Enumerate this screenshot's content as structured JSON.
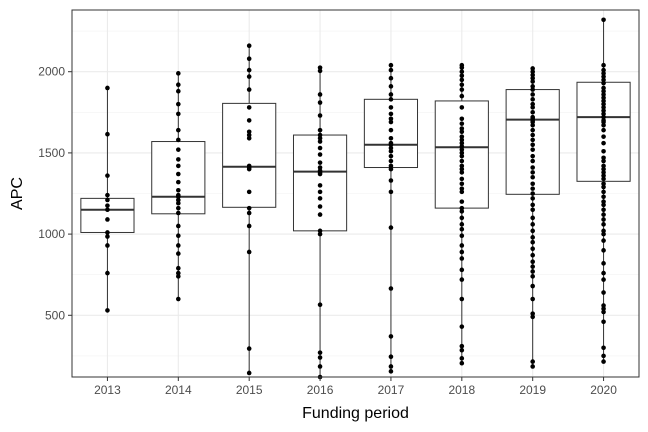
{
  "chart_data": {
    "type": "box",
    "xlabel": "Funding period",
    "ylabel": "APC",
    "ylim": [
      120,
      2380
    ],
    "yticks": [
      500,
      1000,
      1500,
      2000
    ],
    "grid": true,
    "theme": "bw",
    "categories": [
      "2013",
      "2014",
      "2015",
      "2016",
      "2017",
      "2018",
      "2019",
      "2020"
    ],
    "boxes": [
      {
        "q1": 1010,
        "median": 1150,
        "q3": 1220,
        "whisker_low": 530,
        "whisker_high": 1900
      },
      {
        "q1": 1125,
        "median": 1230,
        "q3": 1570,
        "whisker_low": 600,
        "whisker_high": 1990
      },
      {
        "q1": 1165,
        "median": 1415,
        "q3": 1805,
        "whisker_low": 145,
        "whisker_high": 2160
      },
      {
        "q1": 1020,
        "median": 1385,
        "q3": 1610,
        "whisker_low": 120,
        "whisker_high": 2025
      },
      {
        "q1": 1410,
        "median": 1550,
        "q3": 1830,
        "whisker_low": 155,
        "whisker_high": 2040
      },
      {
        "q1": 1160,
        "median": 1535,
        "q3": 1820,
        "whisker_low": 205,
        "whisker_high": 2040
      },
      {
        "q1": 1245,
        "median": 1705,
        "q3": 1890,
        "whisker_low": 185,
        "whisker_high": 2020
      },
      {
        "q1": 1325,
        "median": 1720,
        "q3": 1935,
        "whisker_low": 215,
        "whisker_high": 2320
      }
    ],
    "points": [
      [
        1900,
        1615,
        1360,
        1240,
        1210,
        1175,
        1150,
        1090,
        1010,
        985,
        930,
        760,
        530
      ],
      [
        1990,
        1920,
        1880,
        1800,
        1740,
        1640,
        1580,
        1520,
        1460,
        1420,
        1370,
        1320,
        1270,
        1240,
        1230,
        1210,
        1190,
        1160,
        1130,
        1050,
        990,
        930,
        880,
        790,
        760,
        740,
        600
      ],
      [
        2160,
        2080,
        2010,
        1970,
        1890,
        1780,
        1700,
        1630,
        1610,
        1590,
        1420,
        1410,
        1400,
        1260,
        1160,
        1130,
        1050,
        890,
        295,
        145
      ],
      [
        2025,
        2005,
        1860,
        1810,
        1730,
        1640,
        1610,
        1590,
        1570,
        1530,
        1490,
        1440,
        1410,
        1390,
        1380,
        1370,
        1300,
        1260,
        1220,
        1170,
        1120,
        1020,
        1000,
        565,
        270,
        240,
        185,
        120
      ],
      [
        2040,
        2010,
        1960,
        1910,
        1860,
        1830,
        1780,
        1740,
        1710,
        1690,
        1640,
        1590,
        1560,
        1550,
        1530,
        1510,
        1480,
        1450,
        1420,
        1400,
        1330,
        1260,
        1040,
        665,
        370,
        245,
        185,
        155
      ],
      [
        2040,
        2025,
        2000,
        1975,
        1950,
        1920,
        1890,
        1850,
        1780,
        1710,
        1680,
        1650,
        1630,
        1600,
        1580,
        1560,
        1540,
        1520,
        1500,
        1480,
        1450,
        1420,
        1400,
        1380,
        1340,
        1310,
        1280,
        1260,
        1200,
        1160,
        1140,
        1100,
        1060,
        1030,
        990,
        930,
        890,
        850,
        780,
        720,
        600,
        430,
        310,
        285,
        235,
        205
      ],
      [
        2020,
        2000,
        1980,
        1960,
        1940,
        1910,
        1890,
        1860,
        1830,
        1800,
        1780,
        1750,
        1720,
        1710,
        1700,
        1690,
        1670,
        1640,
        1610,
        1580,
        1550,
        1520,
        1480,
        1450,
        1410,
        1380,
        1350,
        1310,
        1280,
        1250,
        1220,
        1180,
        1150,
        1100,
        1060,
        1020,
        980,
        950,
        910,
        870,
        830,
        800,
        770,
        740,
        680,
        600,
        510,
        490,
        215,
        185
      ],
      [
        2320,
        2040,
        2010,
        1990,
        1970,
        1950,
        1930,
        1900,
        1880,
        1860,
        1840,
        1820,
        1800,
        1780,
        1760,
        1740,
        1720,
        1700,
        1690,
        1670,
        1640,
        1600,
        1560,
        1510,
        1470,
        1450,
        1420,
        1400,
        1380,
        1360,
        1340,
        1310,
        1290,
        1260,
        1230,
        1200,
        1180,
        1150,
        1120,
        1090,
        1060,
        1020,
        1000,
        960,
        900,
        820,
        760,
        720,
        640,
        560,
        540,
        520,
        460,
        300,
        250,
        215
      ]
    ]
  }
}
